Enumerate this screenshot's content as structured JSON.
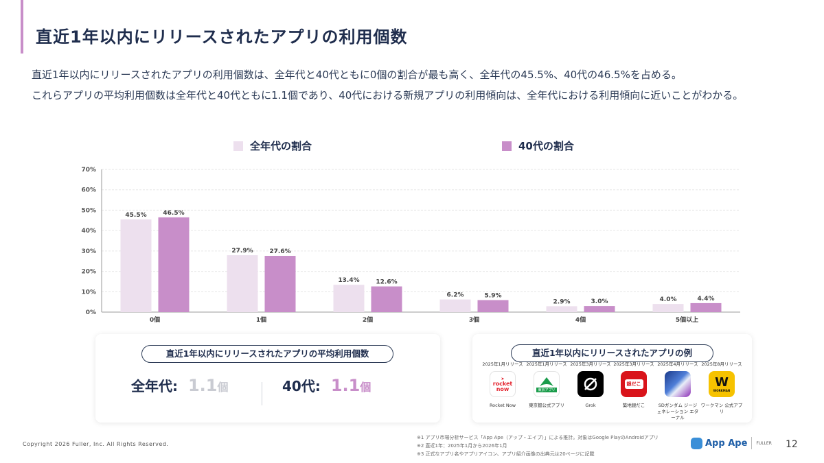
{
  "header": {
    "title": "直近1年以内にリリースされたアプリの利用個数",
    "description_line1": "直近1年以内にリリースされたアプリの利用個数は、全年代と40代ともに0個の割合が最も高く、全年代の45.5%、40代の46.5%を占める。",
    "description_line2": "これらアプリの平均利用個数は全年代と40代ともに1.1個であり、40代における新規アプリの利用傾向は、全年代における利用傾向に近いことがわかる。"
  },
  "colors": {
    "all_ages": "#ede0ee",
    "forties": "#c88ec9",
    "accent": "#c88ec9"
  },
  "chart_data": {
    "type": "bar",
    "categories": [
      "0個",
      "1個",
      "2個",
      "3個",
      "4個",
      "5個以上"
    ],
    "series": [
      {
        "name": "全年代の割合",
        "values": [
          45.5,
          27.9,
          13.4,
          6.2,
          2.9,
          4.0
        ],
        "labels": [
          "45.5%",
          "27.9%",
          "13.4%",
          "6.2%",
          "2.9%",
          "4.0%"
        ]
      },
      {
        "name": "40代の割合",
        "values": [
          46.5,
          27.6,
          12.6,
          5.9,
          3.0,
          4.4
        ],
        "labels": [
          "46.5%",
          "27.6%",
          "12.6%",
          "5.9%",
          "3.0%",
          "4.4%"
        ]
      }
    ],
    "ylim": [
      0,
      70
    ],
    "yticks": [
      0,
      10,
      20,
      30,
      40,
      50,
      60,
      70
    ],
    "ytick_labels": [
      "0%",
      "10%",
      "20%",
      "30%",
      "40%",
      "50%",
      "60%",
      "70%"
    ],
    "grid": true,
    "legend": "top"
  },
  "average_card": {
    "title": "直近1年以内にリリースされたアプリの平均利用個数",
    "all_label": "全年代:",
    "all_value": "1.1",
    "forties_label": "40代:",
    "forties_value": "1.1",
    "unit": "個"
  },
  "examples_card": {
    "title": "直近1年以内にリリースされたアプリの例",
    "apps": [
      {
        "release": "2025年1月リリース",
        "name": "Rocket Now",
        "icon_text": "rocket now",
        "icon": "rocket-now-icon"
      },
      {
        "release": "2025年1月リリース",
        "name": "東京都公式アプリ",
        "icon_text": "東京アプリ",
        "icon": "tokyo-app-icon"
      },
      {
        "release": "2025年3月リリース",
        "name": "Grok",
        "icon_text": "",
        "icon": "grok-icon"
      },
      {
        "release": "2025年3月リリース",
        "name": "築地銀だこ",
        "icon_text": "銀だこ",
        "icon": "gindaco-icon"
      },
      {
        "release": "2025年4月リリース",
        "name": "SDガンダム ジージェネレーション エターナル",
        "icon_text": "",
        "icon": "sd-gundam-icon"
      },
      {
        "release": "2025年8月リリース",
        "name": "ワークマン 公式アプリ",
        "icon_text": "WORKMAN",
        "icon_letter": "W",
        "icon": "workman-icon"
      }
    ]
  },
  "footer": {
    "copyright": "Copyright 2026 Fuller, Inc. All Rights Reserved.",
    "note1": "※1 アプリ市場分析サービス「App Ape（アップ・エイプ）」による推計。対象はGoogle PlayのAndroidアプリ",
    "note2": "※2 直近1年：2025年1月から2026年1月",
    "note3": "※3 正式なアプリ名やアプリアイコン、アプリ紹介画像の出典元は20ページに記載",
    "brand": "App Ape",
    "brand_sub": "FULLER",
    "page_number": "12"
  }
}
